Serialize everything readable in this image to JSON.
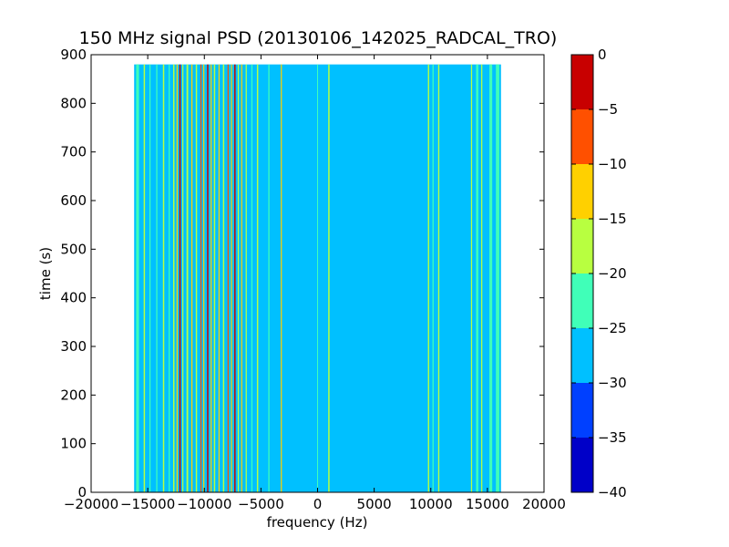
{
  "chart_data": {
    "type": "heatmap",
    "title": "150 MHz signal PSD (20130106_142025_RADCAL_TRO)",
    "xlabel": "frequency (Hz)",
    "ylabel": "time (s)",
    "xlim": [
      -20000,
      20000
    ],
    "ylim": [
      0,
      900
    ],
    "x_ticks": [
      -20000,
      -15000,
      -10000,
      -5000,
      0,
      5000,
      10000,
      15000,
      20000
    ],
    "x_tick_labels": [
      "−20000",
      "−15000",
      "−10000",
      "−5000",
      "0",
      "5000",
      "10000",
      "15000",
      "20000"
    ],
    "y_ticks": [
      0,
      100,
      200,
      300,
      400,
      500,
      600,
      700,
      800,
      900
    ],
    "y_tick_labels": [
      "0",
      "100",
      "200",
      "300",
      "400",
      "500",
      "600",
      "700",
      "800",
      "900"
    ],
    "data_extent": {
      "x": [
        -16200,
        16200
      ],
      "y": [
        0,
        880
      ]
    },
    "background_level": -27.5,
    "lines": [
      {
        "x": -15900,
        "level": -22.5,
        "width": 250
      },
      {
        "x": -15300,
        "level": -17.5,
        "width": 120
      },
      {
        "x": -14800,
        "level": -22.5,
        "width": 100
      },
      {
        "x": -14200,
        "level": -22.5,
        "width": 100
      },
      {
        "x": -13600,
        "level": -17.5,
        "width": 120
      },
      {
        "x": -13100,
        "level": -22.5,
        "width": 100
      },
      {
        "x": -12700,
        "level": -17.5,
        "width": 120
      },
      {
        "x": -12400,
        "level": -12.5,
        "width": 110
      },
      {
        "x": -12150,
        "level": -2.5,
        "width": 120
      },
      {
        "x": -11900,
        "level": -17.5,
        "width": 100
      },
      {
        "x": -11500,
        "level": -17.5,
        "width": 150
      },
      {
        "x": -11100,
        "level": -12.5,
        "width": 110
      },
      {
        "x": -10700,
        "level": -17.5,
        "width": 120
      },
      {
        "x": -10300,
        "level": -7.5,
        "width": 100
      },
      {
        "x": -10050,
        "level": -12.5,
        "width": 100
      },
      {
        "x": -9700,
        "level": -2.5,
        "width": 120
      },
      {
        "x": -9400,
        "level": -12.5,
        "width": 100
      },
      {
        "x": -9100,
        "level": -17.5,
        "width": 120
      },
      {
        "x": -8700,
        "level": -12.5,
        "width": 100
      },
      {
        "x": -8300,
        "level": -17.5,
        "width": 120
      },
      {
        "x": -7900,
        "level": -7.5,
        "width": 100
      },
      {
        "x": -7600,
        "level": -12.5,
        "width": 100
      },
      {
        "x": -7300,
        "level": -2.5,
        "width": 120
      },
      {
        "x": -7000,
        "level": -17.5,
        "width": 100
      },
      {
        "x": -6700,
        "level": -12.5,
        "width": 100
      },
      {
        "x": -6300,
        "level": -17.5,
        "width": 100
      },
      {
        "x": -5800,
        "level": -22.5,
        "width": 100
      },
      {
        "x": -5300,
        "level": -17.5,
        "width": 120
      },
      {
        "x": -4300,
        "level": -22.5,
        "width": 100
      },
      {
        "x": -3200,
        "level": -12.5,
        "width": 100
      },
      {
        "x": 0,
        "level": -22.5,
        "width": 80
      },
      {
        "x": 1000,
        "level": -17.5,
        "width": 120
      },
      {
        "x": 9800,
        "level": -17.5,
        "width": 110
      },
      {
        "x": 10200,
        "level": -22.5,
        "width": 100
      },
      {
        "x": 10700,
        "level": -17.5,
        "width": 110
      },
      {
        "x": 13600,
        "level": -17.5,
        "width": 100
      },
      {
        "x": 14100,
        "level": -22.5,
        "width": 200
      },
      {
        "x": 14500,
        "level": -17.5,
        "width": 100
      },
      {
        "x": 15300,
        "level": -22.5,
        "width": 250
      },
      {
        "x": 15900,
        "level": -22.5,
        "width": 300
      }
    ],
    "colorbar": {
      "levels": [
        -40,
        -35,
        -30,
        -25,
        -20,
        -15,
        -10,
        -5,
        0
      ],
      "labels": [
        "−40",
        "−35",
        "−30",
        "−25",
        "−20",
        "−15",
        "−10",
        "−5",
        "0"
      ],
      "colors": [
        "#0000c8",
        "#0040ff",
        "#00c0ff",
        "#40ffb8",
        "#b8ff40",
        "#ffd000",
        "#ff5000",
        "#c80000"
      ]
    }
  }
}
